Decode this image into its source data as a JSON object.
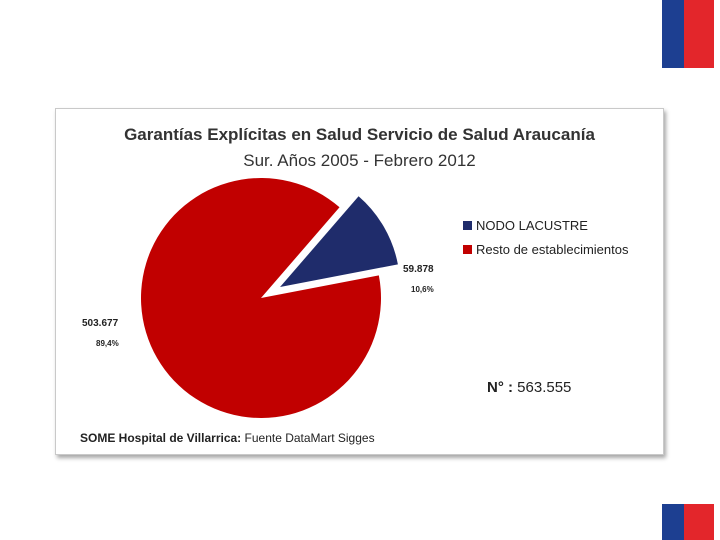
{
  "colors": {
    "flag_blue": "#1d3f91",
    "flag_red": "#e3262b"
  },
  "chart_data": {
    "type": "pie",
    "title": "Garantías Explícitas en Salud Servicio de Salud Araucanía",
    "subtitle": "Sur. Años 2005 - Febrero 2012",
    "exploded": true,
    "legend_position": "right",
    "slices": [
      {
        "name": "NODO LACUSTRE",
        "value": 59878,
        "value_label": "59.878",
        "percent_label": "10,6%",
        "color": "#1f2c6b"
      },
      {
        "name": "Resto de establecimientos",
        "value": 503677,
        "value_label": "503.677",
        "percent_label": "89,4%",
        "color": "#c10000"
      }
    ]
  },
  "total": {
    "label": "N° :",
    "value": "563.555"
  },
  "source": {
    "bold": "SOME Hospital de Villarrica:",
    "text": "Fuente  DataMart Sigges"
  }
}
